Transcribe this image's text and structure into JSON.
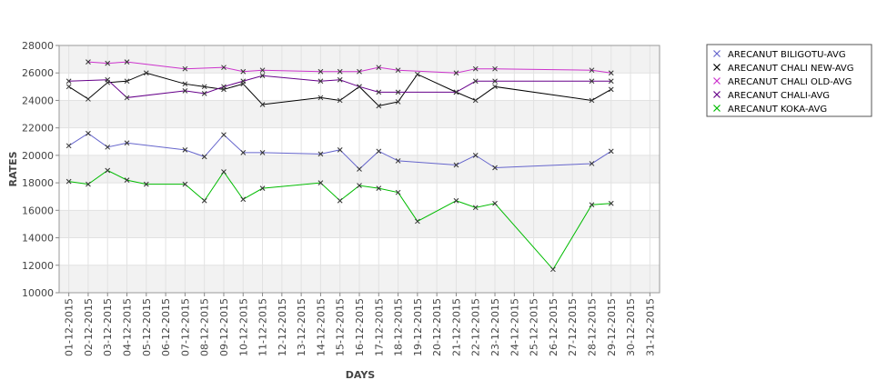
{
  "chart_data": {
    "type": "line",
    "xlabel": "DAYS",
    "ylabel": "RATES",
    "ylim": [
      10000,
      28000
    ],
    "yticks": [
      10000,
      12000,
      14000,
      16000,
      18000,
      20000,
      22000,
      24000,
      26000,
      28000
    ],
    "categories": [
      "01-12-2015",
      "02-12-2015",
      "03-12-2015",
      "04-12-2015",
      "05-12-2015",
      "06-12-2015",
      "07-12-2015",
      "08-12-2015",
      "09-12-2015",
      "10-12-2015",
      "11-12-2015",
      "12-12-2015",
      "13-12-2015",
      "14-12-2015",
      "15-12-2015",
      "16-12-2015",
      "17-12-2015",
      "18-12-2015",
      "19-12-2015",
      "20-12-2015",
      "21-12-2015",
      "22-12-2015",
      "23-12-2015",
      "24-12-2015",
      "25-12-2015",
      "26-12-2015",
      "27-12-2015",
      "28-12-2015",
      "29-12-2015",
      "30-12-2015",
      "31-12-2015"
    ],
    "grid": true,
    "alternating_bands": true,
    "legend_position": "right",
    "marker": "x",
    "series": [
      {
        "name": "ARECANUT BILIGOTU-AVG",
        "color": "#6666cc",
        "values": [
          20700,
          21600,
          20600,
          20900,
          null,
          null,
          20400,
          19900,
          21500,
          20200,
          20200,
          null,
          null,
          20100,
          20400,
          19000,
          20300,
          19600,
          null,
          null,
          19300,
          20000,
          19100,
          null,
          null,
          null,
          null,
          19400,
          20300,
          null,
          null
        ]
      },
      {
        "name": "ARECANUT CHALI NEW-AVG",
        "color": "#000000",
        "values": [
          25000,
          24100,
          25300,
          25400,
          26000,
          null,
          25200,
          25000,
          24800,
          25200,
          23700,
          null,
          null,
          24200,
          24000,
          25000,
          23600,
          23900,
          25900,
          null,
          24600,
          24000,
          25000,
          null,
          null,
          null,
          null,
          24000,
          24800,
          null,
          null
        ]
      },
      {
        "name": "ARECANUT CHALI OLD-AVG",
        "color": "#cc33cc",
        "values": [
          null,
          26800,
          26700,
          26800,
          null,
          null,
          26300,
          null,
          26400,
          26100,
          26200,
          null,
          null,
          26100,
          26100,
          26100,
          26400,
          26200,
          null,
          null,
          26000,
          26300,
          26300,
          null,
          null,
          null,
          null,
          26200,
          26000,
          null,
          null
        ]
      },
      {
        "name": "ARECANUT CHALI-AVG",
        "color": "#66008a",
        "values": [
          25400,
          null,
          25500,
          24200,
          null,
          null,
          24700,
          24500,
          25000,
          25400,
          25800,
          null,
          null,
          25400,
          25500,
          25000,
          24600,
          24600,
          null,
          null,
          24600,
          25400,
          25400,
          null,
          null,
          null,
          null,
          25400,
          25400,
          null,
          null
        ]
      },
      {
        "name": "ARECANUT KOKA-AVG",
        "color": "#00bb00",
        "values": [
          18100,
          17900,
          18900,
          18200,
          17900,
          null,
          17900,
          16700,
          18800,
          16800,
          17600,
          null,
          null,
          18000,
          16700,
          17800,
          17600,
          17300,
          15200,
          null,
          16700,
          16200,
          16500,
          null,
          null,
          11700,
          null,
          16400,
          16500,
          null,
          null
        ]
      }
    ]
  }
}
